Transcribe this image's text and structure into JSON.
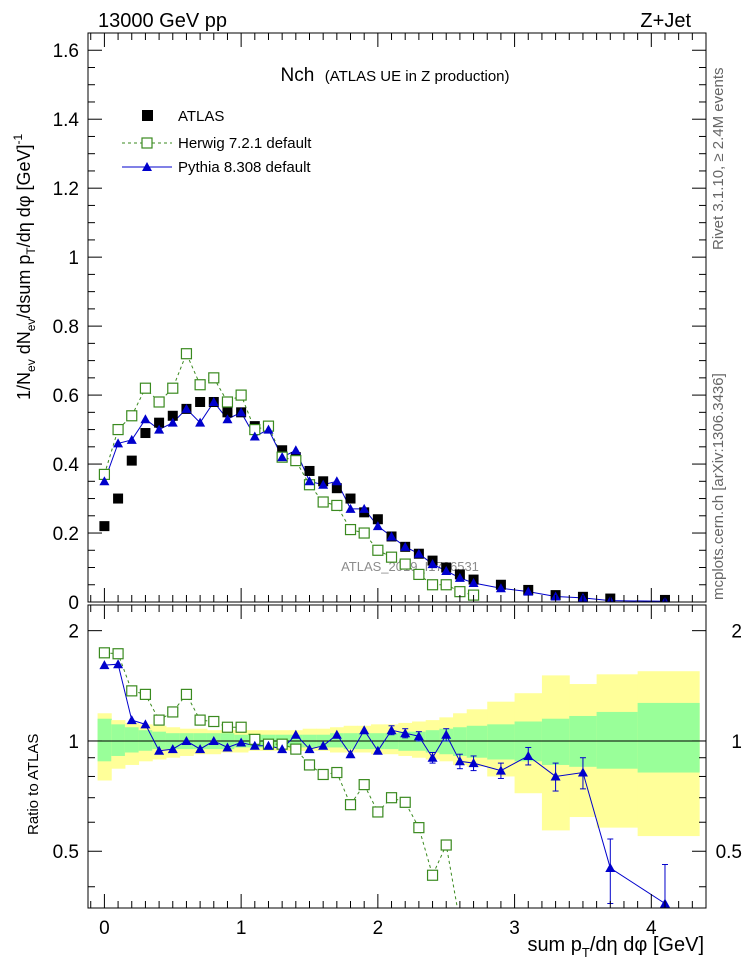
{
  "header": {
    "left": "13000 GeV pp",
    "right": "Z+Jet"
  },
  "side_labels": {
    "rivet": "Rivet 3.1.10, ≥ 2.4M events",
    "mcplots": "mcplots.cern.ch [arXiv:1306.3436]"
  },
  "chart_data": {
    "type": "scatter",
    "title": "Nch",
    "subtitle": "(ATLAS UE in Z production)",
    "watermark": "ATLAS_2019_I1736531",
    "xlabel": "sum p_T/dη dφ [GeV]",
    "ylabel": "1/N_ev dN_ev/dsum p_T/dη dφ [GeV]^-1",
    "ratio_ylabel": "Ratio to ATLAS",
    "xlim": [
      -0.12,
      4.4
    ],
    "ylim": [
      0,
      1.65
    ],
    "ratio_ylim": [
      0.35,
      2.35
    ],
    "x_ticks": [
      0,
      1,
      2,
      3,
      4
    ],
    "y_ticks": [
      0,
      0.2,
      0.4,
      0.6,
      0.8,
      1,
      1.2,
      1.4,
      1.6
    ],
    "y_tick_labels": [
      "0",
      "0.2",
      "0.4",
      "0.6",
      "0.8",
      "1",
      "1.2",
      "1.4",
      "1.6"
    ],
    "ratio_ticks": [
      0.5,
      1,
      2
    ],
    "ratio_tick_labels": [
      "0.5",
      "1",
      "2"
    ],
    "legend_position": "top-left",
    "series": [
      {
        "name": "ATLAS",
        "color": "#000000",
        "marker": "square-filled",
        "x": [
          0,
          0.1,
          0.2,
          0.3,
          0.4,
          0.5,
          0.6,
          0.7,
          0.8,
          0.9,
          1.0,
          1.1,
          1.2,
          1.3,
          1.4,
          1.5,
          1.6,
          1.7,
          1.8,
          1.9,
          2.0,
          2.1,
          2.2,
          2.3,
          2.4,
          2.5,
          2.6,
          2.7,
          2.9,
          3.1,
          3.3,
          3.5,
          3.7,
          4.1
        ],
        "y": [
          0.22,
          0.3,
          0.41,
          0.49,
          0.52,
          0.54,
          0.56,
          0.58,
          0.58,
          0.55,
          0.55,
          0.51,
          0.51,
          0.44,
          0.42,
          0.38,
          0.35,
          0.33,
          0.3,
          0.26,
          0.24,
          0.19,
          0.16,
          0.14,
          0.12,
          0.1,
          0.08,
          0.065,
          0.05,
          0.035,
          0.02,
          0.015,
          0.01,
          0.006
        ]
      },
      {
        "name": "Herwig 7.2.1 default",
        "color": "#3a8a1f",
        "marker": "square-open",
        "line": "dashed",
        "x": [
          0,
          0.1,
          0.2,
          0.3,
          0.4,
          0.5,
          0.6,
          0.7,
          0.8,
          0.9,
          1.0,
          1.1,
          1.2,
          1.3,
          1.4,
          1.5,
          1.6,
          1.7,
          1.8,
          1.9,
          2.0,
          2.1,
          2.2,
          2.3,
          2.4,
          2.5,
          2.6,
          2.7
        ],
        "y": [
          0.37,
          0.5,
          0.54,
          0.62,
          0.58,
          0.62,
          0.72,
          0.63,
          0.65,
          0.58,
          0.6,
          0.5,
          0.51,
          0.42,
          0.41,
          0.34,
          0.29,
          0.28,
          0.21,
          0.2,
          0.15,
          0.13,
          0.11,
          0.08,
          0.05,
          0.05,
          0.03,
          0.02
        ]
      },
      {
        "name": "Pythia 8.308 default",
        "color": "#0000cc",
        "marker": "triangle-filled",
        "line": "solid",
        "x": [
          0,
          0.1,
          0.2,
          0.3,
          0.4,
          0.5,
          0.6,
          0.7,
          0.8,
          0.9,
          1.0,
          1.1,
          1.2,
          1.3,
          1.4,
          1.5,
          1.6,
          1.7,
          1.8,
          1.9,
          2.0,
          2.1,
          2.2,
          2.3,
          2.4,
          2.5,
          2.6,
          2.7,
          2.9,
          3.1,
          3.3,
          3.5,
          3.7,
          4.1
        ],
        "y": [
          0.35,
          0.46,
          0.47,
          0.53,
          0.5,
          0.52,
          0.56,
          0.52,
          0.58,
          0.53,
          0.55,
          0.48,
          0.5,
          0.42,
          0.44,
          0.35,
          0.34,
          0.35,
          0.27,
          0.27,
          0.22,
          0.19,
          0.16,
          0.14,
          0.11,
          0.09,
          0.07,
          0.055,
          0.04,
          0.03,
          0.016,
          0.012,
          0.004,
          0.002
        ]
      }
    ],
    "ratio": {
      "reference": 1.0,
      "band_x": [
        -0.05,
        0.05,
        0.15,
        0.25,
        0.35,
        0.45,
        0.55,
        0.65,
        0.75,
        0.85,
        0.95,
        1.05,
        1.15,
        1.25,
        1.35,
        1.45,
        1.55,
        1.65,
        1.75,
        1.85,
        1.95,
        2.05,
        2.15,
        2.25,
        2.35,
        2.45,
        2.55,
        2.65,
        2.8,
        3.0,
        3.2,
        3.4,
        3.6,
        3.9,
        4.35
      ],
      "band_stat_low": [
        0.88,
        0.91,
        0.93,
        0.94,
        0.95,
        0.95,
        0.95,
        0.95,
        0.95,
        0.95,
        0.96,
        0.96,
        0.96,
        0.96,
        0.96,
        0.96,
        0.96,
        0.96,
        0.95,
        0.95,
        0.95,
        0.95,
        0.94,
        0.94,
        0.93,
        0.92,
        0.91,
        0.9,
        0.89,
        0.88,
        0.86,
        0.85,
        0.84,
        0.82
      ],
      "band_stat_high": [
        1.15,
        1.11,
        1.09,
        1.07,
        1.06,
        1.05,
        1.05,
        1.05,
        1.05,
        1.05,
        1.04,
        1.04,
        1.04,
        1.04,
        1.04,
        1.04,
        1.04,
        1.05,
        1.05,
        1.05,
        1.05,
        1.05,
        1.06,
        1.06,
        1.07,
        1.08,
        1.09,
        1.1,
        1.11,
        1.13,
        1.15,
        1.17,
        1.2,
        1.27
      ],
      "band_tot_low": [
        0.78,
        0.84,
        0.86,
        0.88,
        0.89,
        0.9,
        0.91,
        0.92,
        0.92,
        0.93,
        0.93,
        0.94,
        0.94,
        0.94,
        0.94,
        0.94,
        0.94,
        0.93,
        0.93,
        0.93,
        0.92,
        0.92,
        0.91,
        0.9,
        0.89,
        0.88,
        0.86,
        0.85,
        0.8,
        0.72,
        0.57,
        0.62,
        0.58,
        0.55
      ],
      "band_tot_high": [
        1.19,
        1.14,
        1.12,
        1.11,
        1.1,
        1.09,
        1.08,
        1.08,
        1.07,
        1.07,
        1.07,
        1.07,
        1.07,
        1.07,
        1.07,
        1.08,
        1.08,
        1.09,
        1.1,
        1.1,
        1.11,
        1.11,
        1.12,
        1.13,
        1.14,
        1.16,
        1.19,
        1.22,
        1.28,
        1.35,
        1.51,
        1.43,
        1.52,
        1.55
      ],
      "herwig": [
        1.74,
        1.73,
        1.37,
        1.34,
        1.14,
        1.2,
        1.34,
        1.14,
        1.13,
        1.09,
        1.09,
        1.01,
        0.98,
        0.98,
        0.95,
        0.86,
        0.81,
        0.82,
        0.67,
        0.76,
        0.64,
        0.7,
        0.68,
        0.58,
        0.43,
        0.52,
        0.32,
        0.22
      ],
      "pythia": [
        1.61,
        1.62,
        1.14,
        1.11,
        0.94,
        0.95,
        1.0,
        0.95,
        1.0,
        0.96,
        0.99,
        0.97,
        0.97,
        0.95,
        1.04,
        0.95,
        0.97,
        1.04,
        0.92,
        1.07,
        0.94,
        1.07,
        1.05,
        1.03,
        0.9,
        1.04,
        0.88,
        0.87,
        0.83,
        0.91,
        0.8,
        0.82,
        0.45,
        0.36
      ],
      "pythia_err": [
        0.02,
        0.02,
        0.02,
        0.02,
        0.02,
        0.02,
        0.02,
        0.02,
        0.02,
        0.02,
        0.02,
        0.02,
        0.02,
        0.02,
        0.02,
        0.02,
        0.02,
        0.02,
        0.02,
        0.02,
        0.02,
        0.03,
        0.03,
        0.03,
        0.03,
        0.04,
        0.04,
        0.04,
        0.04,
        0.05,
        0.07,
        0.08,
        0.09,
        0.1
      ]
    }
  }
}
